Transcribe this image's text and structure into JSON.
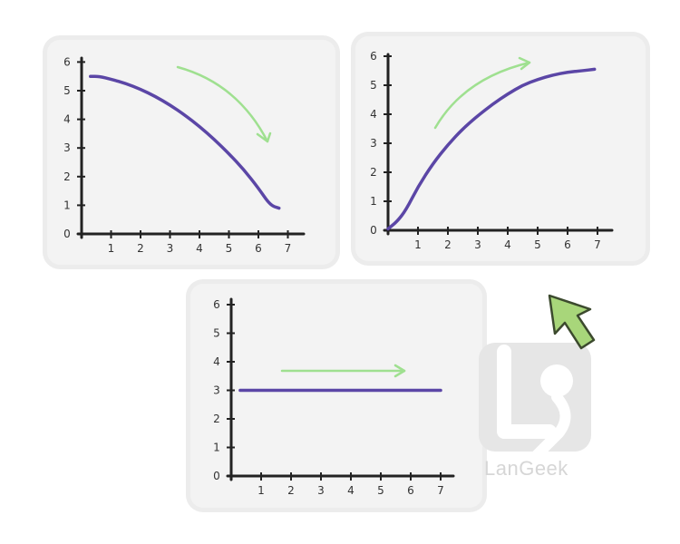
{
  "colors": {
    "line": "#5b46a6",
    "arrow": "#9fe090",
    "axis": "#222222",
    "cursor_fill": "#a8d67a",
    "cursor_stroke": "#3c4a2e"
  },
  "watermark": {
    "text": "LanGeek"
  },
  "chart_data": [
    {
      "type": "line",
      "xticks": [
        "1",
        "2",
        "3",
        "4",
        "5",
        "6",
        "7"
      ],
      "yticks": [
        "0",
        "1",
        "2",
        "3",
        "4",
        "5",
        "6"
      ],
      "xlim": [
        0,
        7.4
      ],
      "ylim": [
        0,
        6
      ],
      "series": [
        {
          "x": [
            0.3,
            0.6,
            1,
            1.5,
            2,
            2.5,
            3,
            3.5,
            4,
            4.5,
            5,
            5.5,
            6,
            6.4,
            6.7
          ],
          "y": [
            5.5,
            5.5,
            5.4,
            5.25,
            5.05,
            4.8,
            4.5,
            4.15,
            3.75,
            3.3,
            2.8,
            2.25,
            1.6,
            1.0,
            0.9
          ]
        }
      ],
      "trend": "down"
    },
    {
      "type": "line",
      "xticks": [
        "1",
        "2",
        "3",
        "4",
        "5",
        "6",
        "7"
      ],
      "yticks": [
        "0",
        "1",
        "2",
        "3",
        "4",
        "5",
        "6"
      ],
      "xlim": [
        0,
        7.4
      ],
      "ylim": [
        0,
        6
      ],
      "series": [
        {
          "x": [
            0,
            0.3,
            0.6,
            1,
            1.5,
            2,
            2.5,
            3,
            3.5,
            4,
            4.5,
            5,
            5.5,
            6,
            6.5,
            6.9
          ],
          "y": [
            0.05,
            0.3,
            0.7,
            1.5,
            2.3,
            2.95,
            3.5,
            3.95,
            4.35,
            4.7,
            5.0,
            5.2,
            5.35,
            5.45,
            5.5,
            5.55
          ]
        }
      ],
      "trend": "up"
    },
    {
      "type": "line",
      "xticks": [
        "1",
        "2",
        "3",
        "4",
        "5",
        "6",
        "7"
      ],
      "yticks": [
        "0",
        "1",
        "2",
        "3",
        "4",
        "5",
        "6"
      ],
      "xlim": [
        0,
        7.4
      ],
      "ylim": [
        0,
        6
      ],
      "series": [
        {
          "x": [
            0.3,
            7.0
          ],
          "y": [
            3,
            3
          ]
        }
      ],
      "trend": "flat"
    }
  ]
}
